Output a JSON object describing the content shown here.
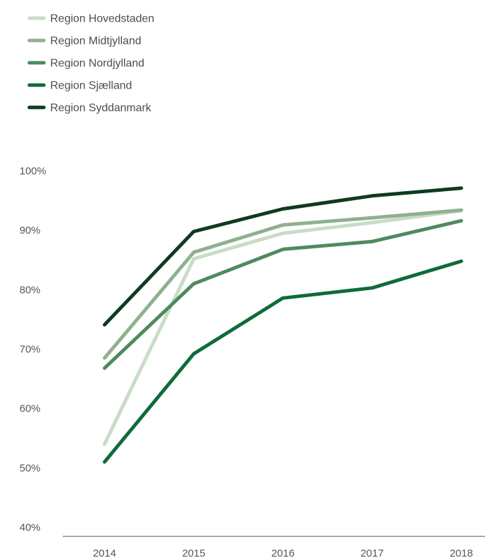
{
  "chart_data": {
    "type": "line",
    "title": "",
    "xlabel": "",
    "ylabel": "",
    "x": [
      "2014",
      "2015",
      "2016",
      "2017",
      "2018"
    ],
    "y_ticks": [
      "40%",
      "50%",
      "60%",
      "70%",
      "80%",
      "90%",
      "100%"
    ],
    "ylim": [
      40,
      100
    ],
    "grid": false,
    "legend_position": "top-left",
    "series": [
      {
        "name": "Region Hovedstaden",
        "color": "#c8dcc8",
        "values": [
          54,
          85.2,
          89.5,
          91.3,
          93.3
        ]
      },
      {
        "name": "Region Midtjylland",
        "color": "#8fb08f",
        "values": [
          68.5,
          86.3,
          90.9,
          92.1,
          93.4
        ]
      },
      {
        "name": "Region Nordjylland",
        "color": "#4e8a5e",
        "values": [
          66.8,
          81,
          86.8,
          88.1,
          91.6
        ]
      },
      {
        "name": "Region Sjælland",
        "color": "#0f6b3a",
        "values": [
          51,
          69.2,
          78.6,
          80.3,
          84.8
        ]
      },
      {
        "name": "Region Syddanmark",
        "color": "#0d3b1f",
        "values": [
          74.1,
          89.8,
          93.6,
          95.8,
          97.1
        ]
      }
    ]
  }
}
